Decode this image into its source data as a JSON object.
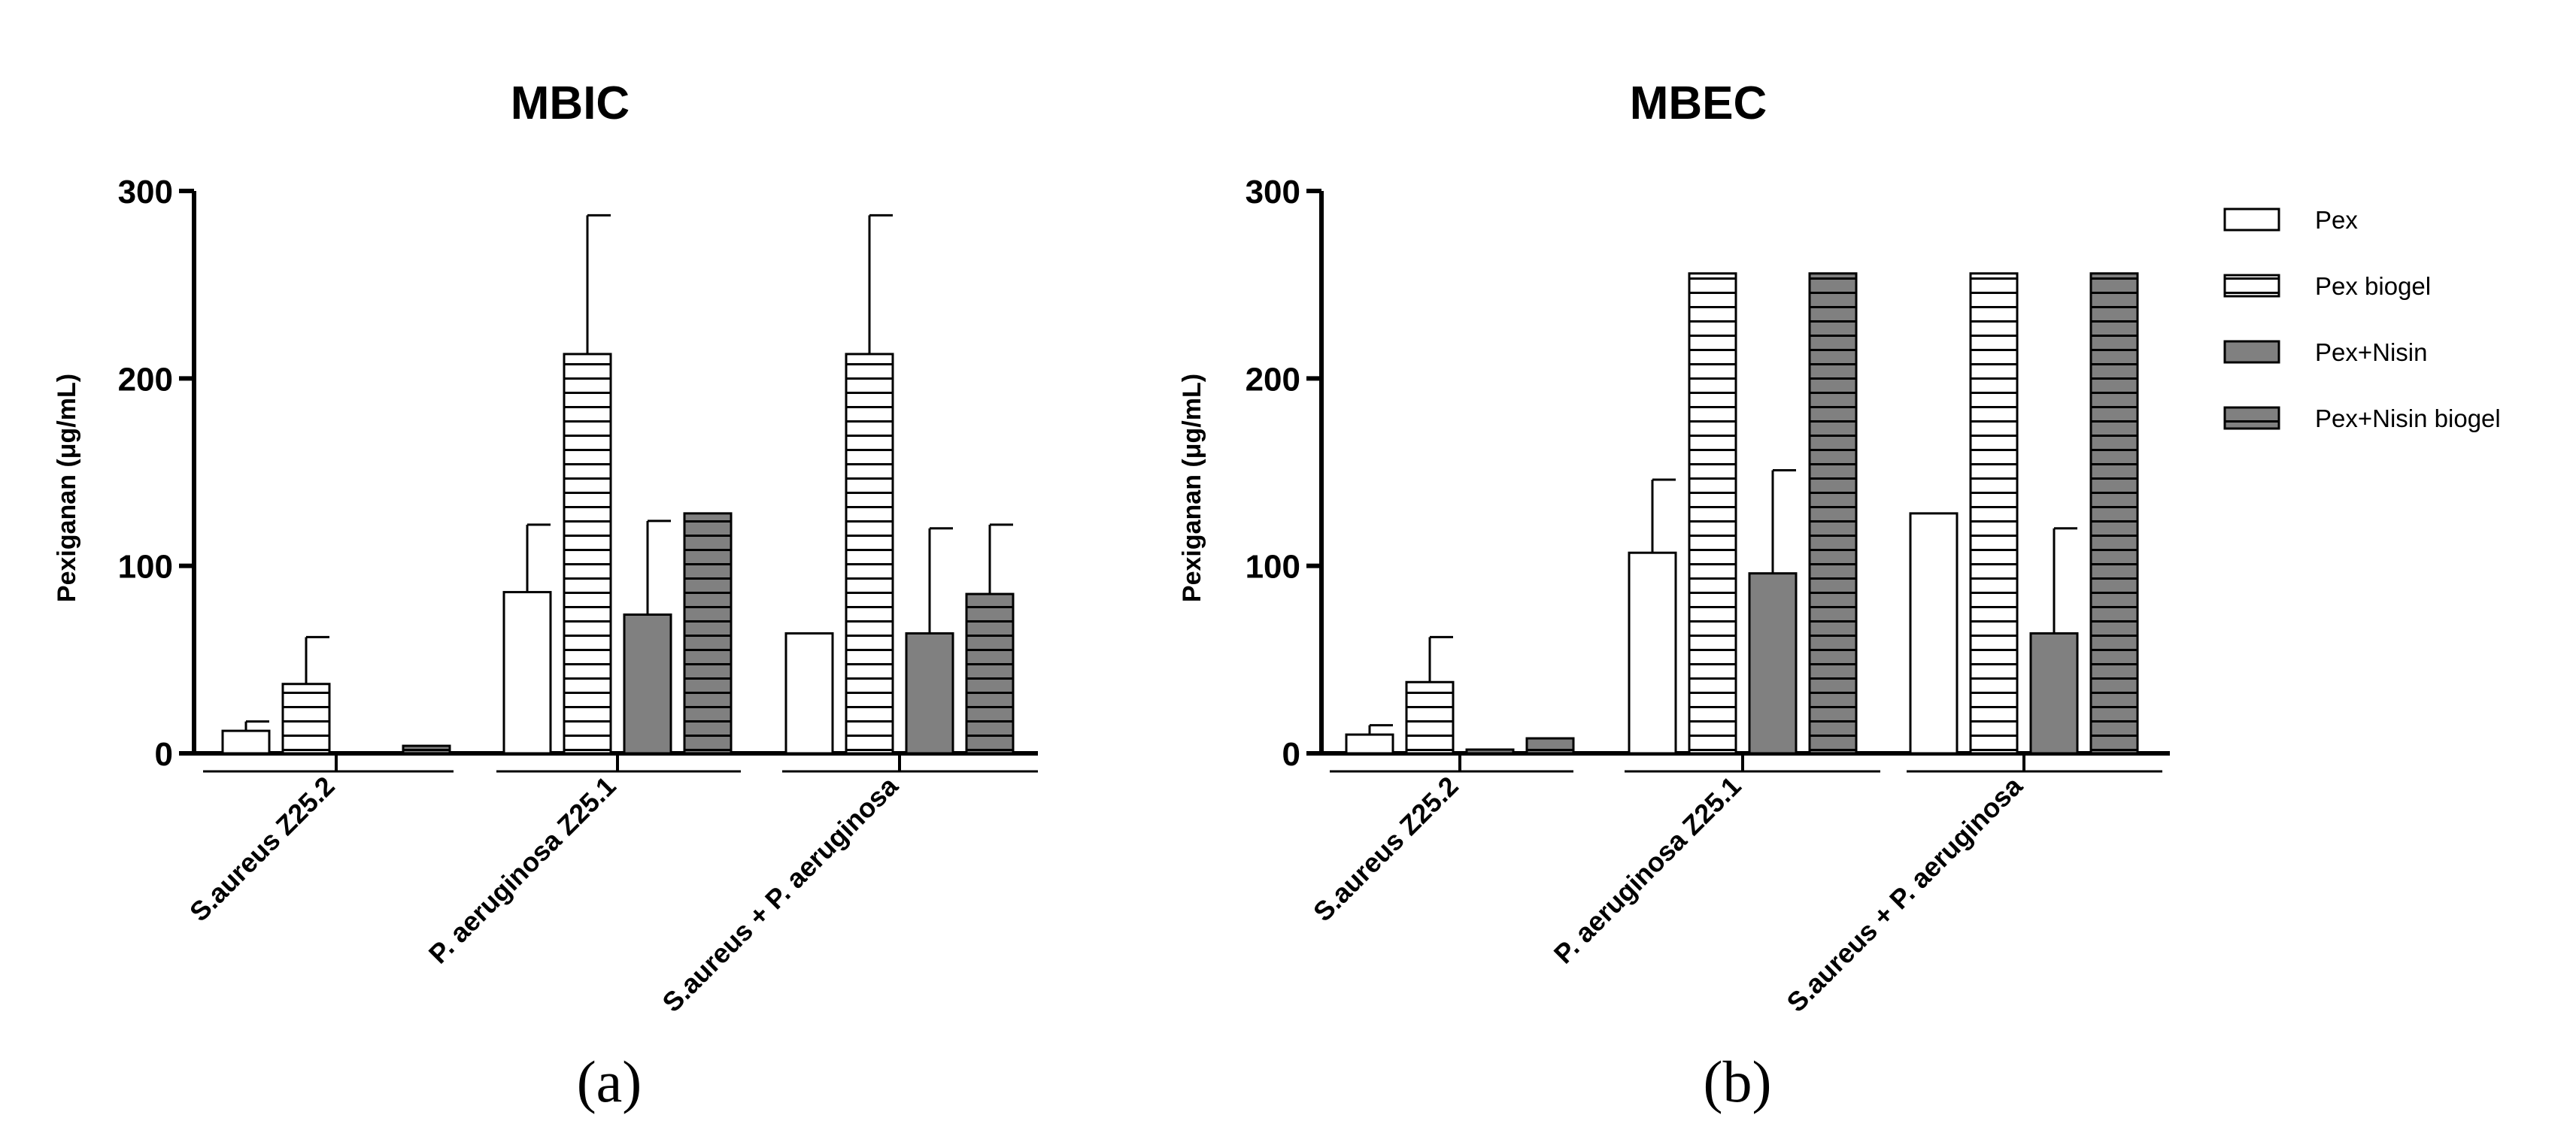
{
  "colors": {
    "pex": "#ffffff",
    "pex_biogel": "#ffffff",
    "pex_nisin": "#808080",
    "pex_nisin_biogel": "#808080",
    "stroke": "#000000"
  },
  "legend": [
    {
      "name": "Pex",
      "pattern": "solid-white"
    },
    {
      "name": "Pex biogel",
      "pattern": "hatched-white"
    },
    {
      "name": "Pex+Nisin",
      "pattern": "solid-gray"
    },
    {
      "name": "Pex+Nisin biogel",
      "pattern": "hatched-gray"
    }
  ],
  "chart_data": [
    {
      "type": "bar",
      "panel_label": "(a)",
      "title": "MBIC",
      "ylabel": "Pexiganan (μg/mL)",
      "xlabel": "",
      "ylim": [
        0,
        300
      ],
      "yticks": [
        "0",
        "100",
        "200",
        "300"
      ],
      "categories": [
        "S.aureus Z25.2",
        "P. aeruginosa Z25.1",
        "S.aureus + P. aeruginosa"
      ],
      "series": [
        {
          "name": "Pex",
          "values": [
            12,
            86,
            64
          ],
          "errors": [
            5,
            36,
            0
          ]
        },
        {
          "name": "Pex biogel",
          "values": [
            37,
            213,
            213
          ],
          "errors": [
            25,
            74,
            74
          ]
        },
        {
          "name": "Pex+Nisin",
          "values": [
            0,
            74,
            64
          ],
          "errors": [
            0,
            50,
            56
          ]
        },
        {
          "name": "Pex+Nisin biogel",
          "values": [
            4,
            128,
            85
          ],
          "errors": [
            0,
            0,
            37
          ]
        }
      ]
    },
    {
      "type": "bar",
      "panel_label": "(b)",
      "title": "MBEC",
      "ylabel": "Pexiganan (μg/mL)",
      "xlabel": "",
      "ylim": [
        0,
        300
      ],
      "yticks": [
        "0",
        "100",
        "200",
        "300"
      ],
      "categories": [
        "S.aureus Z25.2",
        "P. aeruginosa Z25.1",
        "S.aureus + P. aeruginosa"
      ],
      "series": [
        {
          "name": "Pex",
          "values": [
            10,
            107,
            128
          ],
          "errors": [
            5,
            39,
            0
          ]
        },
        {
          "name": "Pex biogel",
          "values": [
            38,
            256,
            256
          ],
          "errors": [
            24,
            0,
            0
          ]
        },
        {
          "name": "Pex+Nisin",
          "values": [
            2,
            96,
            64
          ],
          "errors": [
            0,
            55,
            56
          ]
        },
        {
          "name": "Pex+Nisin biogel",
          "values": [
            8,
            256,
            256
          ],
          "errors": [
            0,
            0,
            0
          ]
        }
      ]
    }
  ]
}
